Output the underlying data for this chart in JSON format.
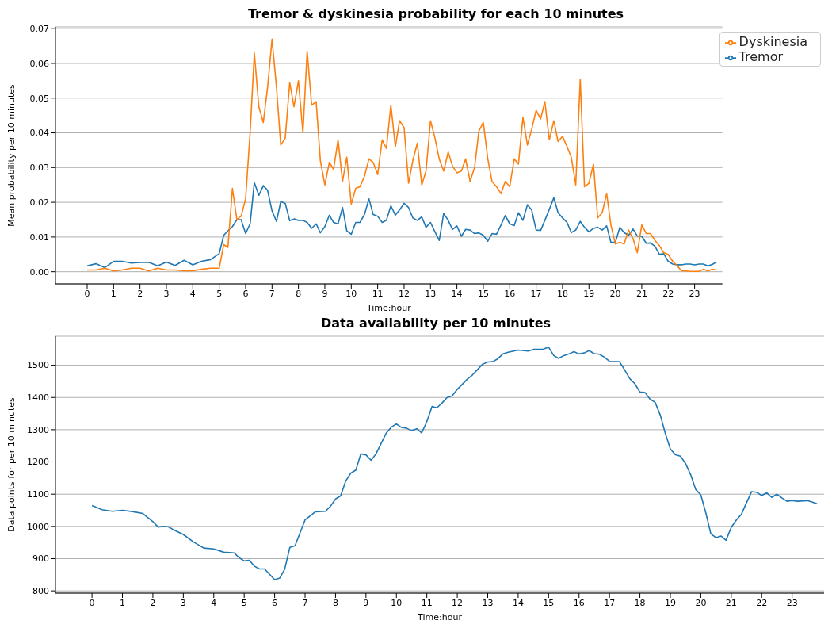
{
  "chart_data": [
    {
      "type": "line",
      "title": "Tremor & dyskinesia probability for each 10 minutes",
      "xlabel": "Time:hour",
      "ylabel": "Mean probability per 10 minutes",
      "grid": "y",
      "legend": "top right",
      "marker": "none",
      "line_style": "solid",
      "x": [
        0,
        0.33,
        0.67,
        1,
        1.33,
        1.67,
        2,
        2.33,
        2.67,
        3,
        3.33,
        3.67,
        4,
        4.33,
        4.67,
        5,
        5.17,
        5.33,
        5.5,
        5.67,
        5.83,
        6,
        6.17,
        6.33,
        6.5,
        6.67,
        6.83,
        7,
        7.17,
        7.33,
        7.5,
        7.67,
        7.83,
        8,
        8.17,
        8.33,
        8.5,
        8.67,
        8.83,
        9,
        9.17,
        9.33,
        9.5,
        9.67,
        9.83,
        10,
        10.17,
        10.33,
        10.5,
        10.67,
        10.83,
        11,
        11.17,
        11.33,
        11.5,
        11.67,
        11.83,
        12,
        12.17,
        12.33,
        12.5,
        12.67,
        12.83,
        13,
        13.17,
        13.33,
        13.5,
        13.67,
        13.83,
        14,
        14.17,
        14.33,
        14.5,
        14.67,
        14.83,
        15,
        15.17,
        15.33,
        15.5,
        15.67,
        15.83,
        16,
        16.17,
        16.33,
        16.5,
        16.67,
        16.83,
        17,
        17.17,
        17.33,
        17.5,
        17.67,
        17.83,
        18,
        18.17,
        18.33,
        18.5,
        18.67,
        18.83,
        19,
        19.17,
        19.33,
        19.5,
        19.67,
        19.83,
        20,
        20.17,
        20.33,
        20.5,
        20.67,
        20.83,
        21,
        21.17,
        21.33,
        21.5,
        21.67,
        21.83,
        22,
        22.17,
        22.33,
        22.5,
        22.67,
        22.83,
        23,
        23.17,
        23.33,
        23.5,
        23.67,
        23.83
      ],
      "series": [
        {
          "name": "Tremor",
          "color": "#1f77b4",
          "values": [
            0.0017,
            0.0023,
            0.0012,
            0.003,
            0.003,
            0.0025,
            0.0027,
            0.0027,
            0.0017,
            0.0028,
            0.0018,
            0.0033,
            0.002,
            0.003,
            0.0035,
            0.0052,
            0.0105,
            0.0118,
            0.013,
            0.015,
            0.015,
            0.011,
            0.0138,
            0.0257,
            0.022,
            0.0248,
            0.0235,
            0.0175,
            0.0145,
            0.0202,
            0.0197,
            0.0147,
            0.0152,
            0.0148,
            0.0148,
            0.0142,
            0.0125,
            0.0138,
            0.0112,
            0.013,
            0.0163,
            0.0142,
            0.0138,
            0.0185,
            0.0118,
            0.0108,
            0.0142,
            0.0142,
            0.0165,
            0.021,
            0.0165,
            0.016,
            0.0142,
            0.0148,
            0.019,
            0.0163,
            0.0178,
            0.0197,
            0.0185,
            0.0155,
            0.0148,
            0.0158,
            0.0128,
            0.0142,
            0.0115,
            0.009,
            0.0168,
            0.0148,
            0.0122,
            0.0132,
            0.0102,
            0.0122,
            0.012,
            0.011,
            0.0112,
            0.0105,
            0.0088,
            0.011,
            0.0108,
            0.0135,
            0.0162,
            0.0138,
            0.0133,
            0.017,
            0.0148,
            0.0193,
            0.0178,
            0.012,
            0.0119,
            0.0148,
            0.018,
            0.0213,
            0.017,
            0.0155,
            0.0142,
            0.0113,
            0.012,
            0.0145,
            0.0128,
            0.0115,
            0.0125,
            0.0128,
            0.012,
            0.0132,
            0.0085,
            0.0085,
            0.0128,
            0.0113,
            0.0105,
            0.0123,
            0.0103,
            0.0102,
            0.0082,
            0.0083,
            0.0073,
            0.005,
            0.0052,
            0.003,
            0.0022,
            0.002,
            0.002,
            0.0022,
            0.0022,
            0.002,
            0.0022,
            0.0022,
            0.0017,
            0.0021,
            0.0028
          ]
        },
        {
          "name": "Dyskinesia",
          "color": "#ff7f0e",
          "values": [
            0.0005,
            0.0005,
            0.001,
            0.0002,
            0.0005,
            0.001,
            0.001,
            0.0002,
            0.001,
            0.0005,
            0.0005,
            0.0003,
            0.0003,
            0.0007,
            0.001,
            0.001,
            0.0078,
            0.007,
            0.024,
            0.015,
            0.016,
            0.021,
            0.04,
            0.063,
            0.0475,
            0.043,
            0.053,
            0.067,
            0.053,
            0.0365,
            0.0385,
            0.0545,
            0.0475,
            0.055,
            0.04,
            0.0635,
            0.048,
            0.049,
            0.032,
            0.025,
            0.0315,
            0.0295,
            0.038,
            0.026,
            0.033,
            0.0195,
            0.024,
            0.0245,
            0.0275,
            0.0325,
            0.0315,
            0.028,
            0.038,
            0.0355,
            0.048,
            0.036,
            0.0435,
            0.0415,
            0.0255,
            0.032,
            0.037,
            0.025,
            0.029,
            0.0435,
            0.0385,
            0.0325,
            0.029,
            0.0345,
            0.0305,
            0.0285,
            0.029,
            0.0325,
            0.026,
            0.03,
            0.0405,
            0.043,
            0.0325,
            0.026,
            0.0245,
            0.0225,
            0.026,
            0.0245,
            0.0325,
            0.031,
            0.0445,
            0.0365,
            0.041,
            0.0465,
            0.044,
            0.049,
            0.038,
            0.0435,
            0.0375,
            0.039,
            0.036,
            0.033,
            0.025,
            0.0555,
            0.0245,
            0.0255,
            0.031,
            0.0155,
            0.017,
            0.0225,
            0.0135,
            0.008,
            0.0085,
            0.008,
            0.012,
            0.0095,
            0.0055,
            0.0135,
            0.011,
            0.011,
            0.009,
            0.0075,
            0.0055,
            0.005,
            0.003,
            0.0018,
            0.0003,
            0.0002,
            0.0001,
            0.0001,
            0.0001,
            0.0007,
            0.0002,
            0.0007,
            0.0005
          ]
        }
      ],
      "xlim": [
        -1.2,
        24.05
      ],
      "xticks": [
        0,
        1,
        2,
        3,
        4,
        5,
        6,
        7,
        8,
        9,
        10,
        11,
        12,
        13,
        14,
        15,
        16,
        17,
        18,
        19,
        20,
        21,
        22,
        23
      ],
      "ylim": [
        -0.0035,
        0.0705
      ],
      "yticks": [
        {
          "value": 0,
          "label": "0.00"
        },
        {
          "value": 0.01,
          "label": "0.01"
        },
        {
          "value": 0.02,
          "label": "0.02"
        },
        {
          "value": 0.03,
          "label": "0.03"
        },
        {
          "value": 0.04,
          "label": "0.04"
        },
        {
          "value": 0.05,
          "label": "0.05"
        },
        {
          "value": 0.06,
          "label": "0.06"
        },
        {
          "value": 0.07,
          "label": "0.07"
        }
      ]
    },
    {
      "type": "line",
      "title": "Data availability per 10 minutes",
      "xlabel": "Time:hour",
      "ylabel": "Data points for per 10 minutes",
      "grid": "y",
      "marker": "none",
      "line_style": "solid",
      "x": [
        0,
        0.33,
        0.67,
        1,
        1.33,
        1.67,
        2,
        2.17,
        2.33,
        2.5,
        2.67,
        3,
        3.33,
        3.67,
        4,
        4.33,
        4.67,
        4.83,
        5,
        5.17,
        5.33,
        5.5,
        5.67,
        6,
        6.17,
        6.33,
        6.5,
        6.67,
        7,
        7.33,
        7.67,
        7.83,
        8,
        8.17,
        8.33,
        8.5,
        8.67,
        8.83,
        9,
        9.17,
        9.33,
        9.67,
        9.83,
        10,
        10.17,
        10.33,
        10.5,
        10.67,
        10.83,
        11,
        11.17,
        11.33,
        11.5,
        11.67,
        11.83,
        12,
        12.33,
        12.5,
        12.67,
        12.83,
        13,
        13.17,
        13.33,
        13.5,
        13.67,
        14,
        14.33,
        14.5,
        14.83,
        15,
        15.17,
        15.33,
        15.5,
        15.67,
        15.83,
        16,
        16.17,
        16.33,
        16.5,
        16.67,
        16.83,
        17,
        17.33,
        17.5,
        17.67,
        17.83,
        18,
        18.17,
        18.33,
        18.5,
        18.67,
        18.83,
        19,
        19.17,
        19.33,
        19.5,
        19.67,
        19.83,
        20,
        20.17,
        20.33,
        20.5,
        20.67,
        20.83,
        21,
        21.17,
        21.33,
        21.5,
        21.67,
        21.83,
        22,
        22.17,
        22.33,
        22.5,
        22.67,
        22.83,
        23,
        23.17,
        23.5,
        23.67,
        23.83
      ],
      "series": [
        {
          "color": "#1f77b4",
          "values": [
            1065,
            1052,
            1047,
            1050,
            1046,
            1040,
            1015,
            998,
            1000,
            999,
            990,
            975,
            952,
            933,
            930,
            920,
            918,
            903,
            893,
            895,
            877,
            868,
            868,
            835,
            840,
            867,
            935,
            940,
            1020,
            1045,
            1047,
            1062,
            1085,
            1095,
            1140,
            1165,
            1175,
            1225,
            1222,
            1205,
            1225,
            1290,
            1308,
            1318,
            1307,
            1305,
            1297,
            1303,
            1290,
            1325,
            1372,
            1368,
            1383,
            1400,
            1405,
            1425,
            1457,
            1470,
            1487,
            1503,
            1510,
            1511,
            1520,
            1535,
            1540,
            1547,
            1544,
            1549,
            1550,
            1556,
            1530,
            1521,
            1530,
            1535,
            1542,
            1535,
            1538,
            1545,
            1536,
            1534,
            1525,
            1512,
            1511,
            1485,
            1458,
            1443,
            1417,
            1415,
            1395,
            1385,
            1345,
            1290,
            1240,
            1222,
            1218,
            1195,
            1160,
            1115,
            1098,
            1040,
            977,
            965,
            970,
            957,
            997,
            1020,
            1037,
            1073,
            1108,
            1106,
            1096,
            1104,
            1090,
            1100,
            1088,
            1078,
            1080,
            1078,
            1080,
            1075,
            1070
          ]
        }
      ],
      "xlim": [
        -1.2,
        24.05
      ],
      "xticks": [
        0,
        1,
        2,
        3,
        4,
        5,
        6,
        7,
        8,
        9,
        10,
        11,
        12,
        13,
        14,
        15,
        16,
        17,
        18,
        19,
        20,
        21,
        22,
        23
      ],
      "ylim": [
        793,
        1590
      ],
      "yticks": [
        800,
        900,
        1000,
        1100,
        1200,
        1300,
        1400,
        1500
      ]
    }
  ]
}
